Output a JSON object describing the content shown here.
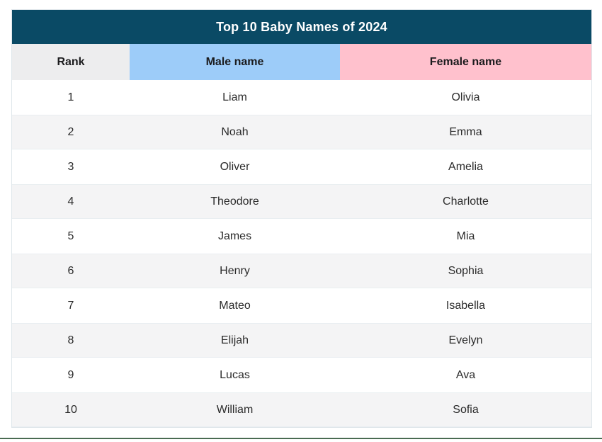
{
  "table": {
    "title": "Top 10 Baby Names of 2024",
    "columns": [
      {
        "key": "rank",
        "label": "Rank"
      },
      {
        "key": "male",
        "label": "Male name"
      },
      {
        "key": "female",
        "label": "Female name"
      }
    ],
    "rows": [
      {
        "rank": "1",
        "male": "Liam",
        "female": "Olivia"
      },
      {
        "rank": "2",
        "male": "Noah",
        "female": "Emma"
      },
      {
        "rank": "3",
        "male": "Oliver",
        "female": "Amelia"
      },
      {
        "rank": "4",
        "male": "Theodore",
        "female": "Charlotte"
      },
      {
        "rank": "5",
        "male": "James",
        "female": "Mia"
      },
      {
        "rank": "6",
        "male": "Henry",
        "female": "Sophia"
      },
      {
        "rank": "7",
        "male": "Mateo",
        "female": "Isabella"
      },
      {
        "rank": "8",
        "male": "Elijah",
        "female": "Evelyn"
      },
      {
        "rank": "9",
        "male": "Lucas",
        "female": "Ava"
      },
      {
        "rank": "10",
        "male": "William",
        "female": "Sofia"
      }
    ]
  },
  "chart_data": {
    "type": "table",
    "title": "Top 10 Baby Names of 2024",
    "columns": [
      "Rank",
      "Male name",
      "Female name"
    ],
    "rows": [
      [
        "1",
        "Liam",
        "Olivia"
      ],
      [
        "2",
        "Noah",
        "Emma"
      ],
      [
        "3",
        "Oliver",
        "Amelia"
      ],
      [
        "4",
        "Theodore",
        "Charlotte"
      ],
      [
        "5",
        "James",
        "Mia"
      ],
      [
        "6",
        "Henry",
        "Sophia"
      ],
      [
        "7",
        "Mateo",
        "Isabella"
      ],
      [
        "8",
        "Elijah",
        "Evelyn"
      ],
      [
        "9",
        "Lucas",
        "Ava"
      ],
      [
        "10",
        "William",
        "Sofia"
      ]
    ],
    "layout_hints": {
      "title_position": "top-banner",
      "zebra_striping": true,
      "column_header_colors": [
        "#EDEDEE",
        "#9DCCF9",
        "#FFC1CD"
      ]
    }
  },
  "colors": {
    "title_bg": "#0A4A65",
    "rank_header_bg": "#EDEDEE",
    "male_header_bg": "#9DCCF9",
    "female_header_bg": "#FFC1CD",
    "row_alt_bg": "#F4F4F5",
    "bottom_line": "#4A6B52"
  }
}
